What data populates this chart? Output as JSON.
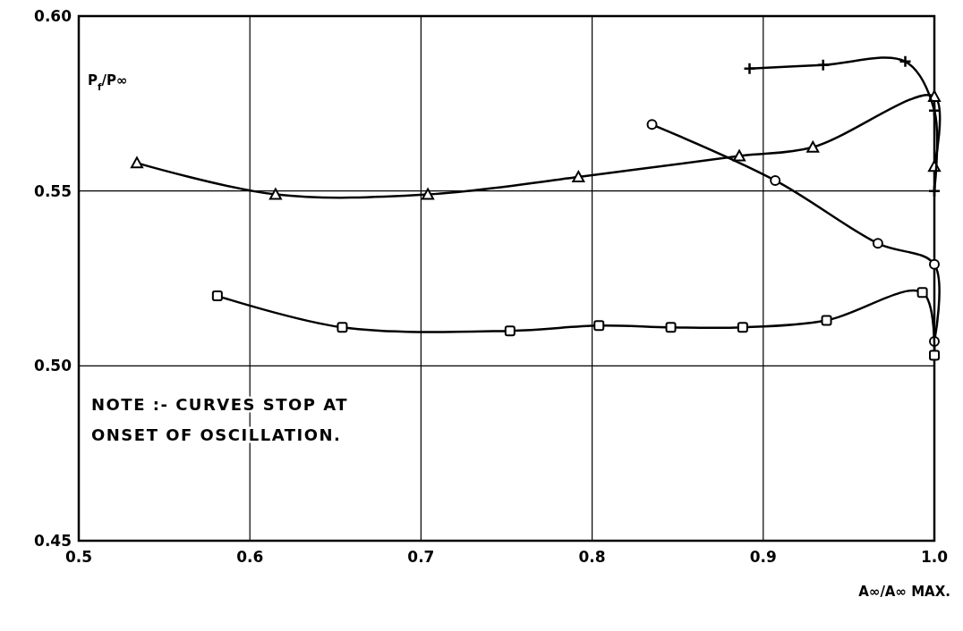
{
  "chart_data": {
    "type": "line",
    "xlabel": "A∞/A∞ MAX.",
    "ylabel": "P$_{f}$/P∞",
    "xlim": [
      0.5,
      1.0
    ],
    "ylim": [
      0.45,
      0.6
    ],
    "xticks": [
      0.5,
      0.6,
      0.7,
      0.8,
      0.9,
      {
        "value": 1.0,
        "label": "1.0"
      }
    ],
    "yticks": [
      0.45,
      {
        "value": 0.5,
        "label": "0.50"
      },
      0.55,
      {
        "value": 0.6,
        "label": "0.60"
      }
    ],
    "grid": true,
    "series": [
      {
        "color": "#000000",
        "marker": "triangle",
        "x": [
          0.534,
          0.615,
          0.704,
          0.792,
          0.886,
          0.929,
          1.0,
          1.0
        ],
        "values": [
          0.558,
          0.549,
          0.549,
          0.554,
          0.56,
          0.5625,
          0.577,
          0.557
        ]
      },
      {
        "color": "#000000",
        "marker": "cross",
        "x": [
          0.892,
          0.935,
          0.983,
          1.0,
          1.0
        ],
        "values": [
          0.585,
          0.586,
          0.587,
          0.573,
          0.55
        ]
      },
      {
        "color": "#000000",
        "marker": "circle",
        "x": [
          0.835,
          0.907,
          0.967,
          1.0,
          1.0
        ],
        "values": [
          0.569,
          0.553,
          0.535,
          0.529,
          0.507
        ]
      },
      {
        "color": "#000000",
        "marker": "square",
        "x": [
          0.581,
          0.654,
          0.752,
          0.804,
          0.846,
          0.888,
          0.937,
          0.993,
          1.0
        ],
        "values": [
          0.52,
          0.511,
          0.51,
          0.5115,
          0.511,
          0.511,
          0.513,
          0.521,
          0.503
        ]
      }
    ],
    "annotations": [
      "NOTE :- CURVES STOP AT ONSET OF OSCILLATION."
    ]
  }
}
